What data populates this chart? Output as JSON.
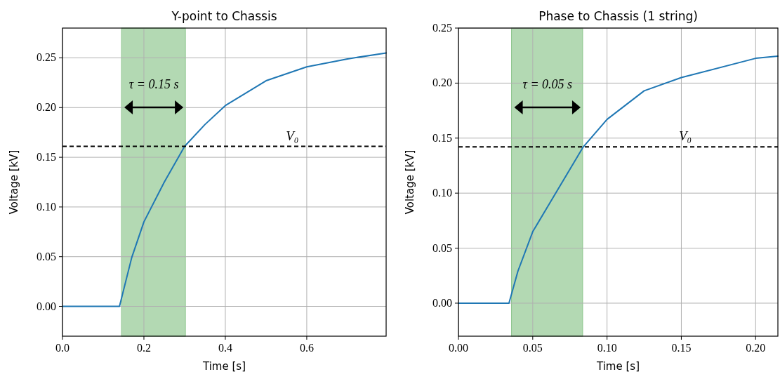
{
  "chart_data": [
    {
      "type": "line",
      "title": "Y-point to Chassis",
      "xlabel": "Time [s]",
      "ylabel": "Voltage [kV]",
      "xlim": [
        0,
        0.795
      ],
      "ylim": [
        -0.03,
        0.28
      ],
      "xticks": [
        {
          "value": 0,
          "label": "0.0"
        },
        {
          "value": 0.2,
          "label": "0.2"
        },
        {
          "value": 0.4,
          "label": "0.4"
        },
        {
          "value": 0.6,
          "label": "0.6"
        }
      ],
      "yticks": [
        {
          "value": 0,
          "label": "0.00"
        },
        {
          "value": 0.05,
          "label": "0.05"
        },
        {
          "value": 0.1,
          "label": "0.10"
        },
        {
          "value": 0.15,
          "label": "0.15"
        },
        {
          "value": 0.2,
          "label": "0.20"
        },
        {
          "value": 0.25,
          "label": "0.25"
        }
      ],
      "grid": true,
      "series": [
        {
          "color": "#1f77b4",
          "x": [
            0,
            0.05,
            0.1,
            0.14,
            0.17,
            0.2,
            0.25,
            0.3,
            0.35,
            0.4,
            0.5,
            0.6,
            0.7,
            0.795
          ],
          "values": [
            0,
            0,
            0,
            0,
            0.049,
            0.085,
            0.125,
            0.161,
            0.183,
            0.202,
            0.227,
            0.241,
            0.249,
            0.255
          ]
        }
      ],
      "bands": [
        {
          "axis": "x",
          "from": 0.145,
          "to": 0.302,
          "color": "#b3d9b3",
          "label": "τ = 0.15 s"
        }
      ],
      "ref_lines": [
        {
          "axis": "y",
          "value": 0.161,
          "color": "#000000",
          "line_style": "dashed",
          "label": "V₀"
        }
      ]
    },
    {
      "type": "line",
      "title": "Phase to Chassis (1 string)",
      "xlabel": "Time [s]",
      "ylabel": "Voltage [kV]",
      "xlim": [
        0,
        0.215
      ],
      "ylim": [
        -0.03,
        0.25
      ],
      "xticks": [
        {
          "value": 0,
          "label": "0.00"
        },
        {
          "value": 0.05,
          "label": "0.05"
        },
        {
          "value": 0.1,
          "label": "0.10"
        },
        {
          "value": 0.15,
          "label": "0.15"
        },
        {
          "value": 0.2,
          "label": "0.20"
        }
      ],
      "yticks": [
        {
          "value": 0,
          "label": "0.00"
        },
        {
          "value": 0.05,
          "label": "0.05"
        },
        {
          "value": 0.1,
          "label": "0.10"
        },
        {
          "value": 0.15,
          "label": "0.15"
        },
        {
          "value": 0.2,
          "label": "0.20"
        },
        {
          "value": 0.25,
          "label": "0.25"
        }
      ],
      "grid": true,
      "series": [
        {
          "color": "#1f77b4",
          "x": [
            0,
            0.01,
            0.02,
            0.034,
            0.04,
            0.05,
            0.065,
            0.084,
            0.1,
            0.125,
            0.15,
            0.2,
            0.215
          ],
          "values": [
            0,
            0,
            0,
            0,
            0.029,
            0.065,
            0.099,
            0.142,
            0.167,
            0.193,
            0.205,
            0.2225,
            0.2245
          ]
        }
      ],
      "bands": [
        {
          "axis": "x",
          "from": 0.0357,
          "to": 0.0836,
          "color": "#b3d9b3",
          "label": "τ = 0.05 s"
        }
      ],
      "ref_lines": [
        {
          "axis": "y",
          "value": 0.142,
          "color": "#000000",
          "line_style": "dashed",
          "label": "V₀"
        }
      ]
    }
  ]
}
